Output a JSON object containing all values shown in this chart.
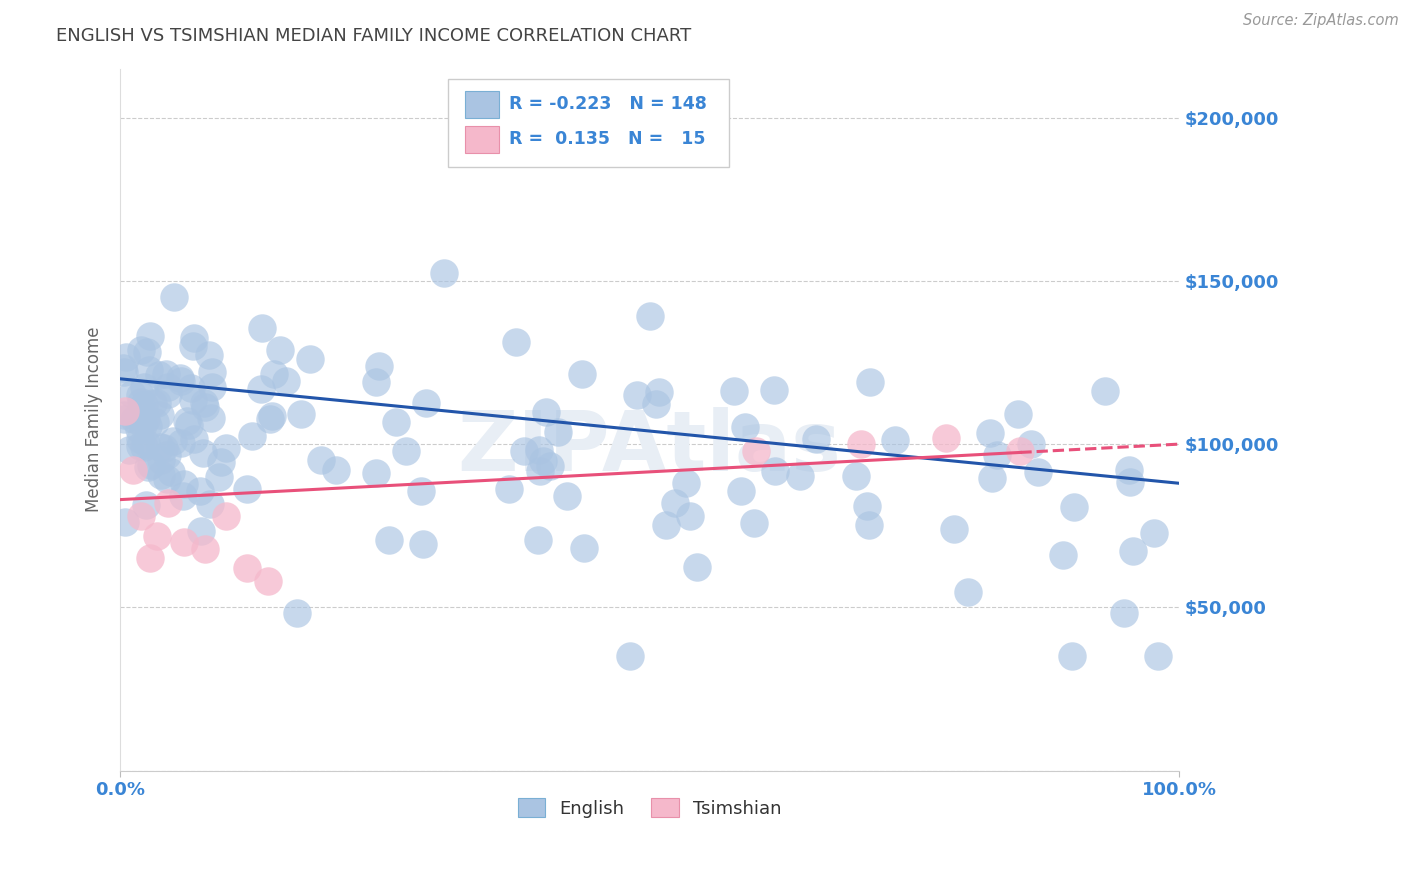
{
  "title": "ENGLISH VS TSIMSHIAN MEDIAN FAMILY INCOME CORRELATION CHART",
  "source": "Source: ZipAtlas.com",
  "ylabel": "Median Family Income",
  "xmin": 0.0,
  "xmax": 100.0,
  "ymin": 0,
  "ymax": 215000,
  "yticks": [
    0,
    50000,
    100000,
    150000,
    200000
  ],
  "english_R": -0.223,
  "english_N": 148,
  "tsimshian_R": 0.135,
  "tsimshian_N": 15,
  "english_color": "#aac4e2",
  "english_edge_color": "#7aafd4",
  "english_line_color": "#2255aa",
  "tsimshian_color": "#f5b8cb",
  "tsimshian_edge_color": "#e890aa",
  "tsimshian_line_color": "#e8507a",
  "background_color": "#ffffff",
  "grid_color": "#cccccc",
  "title_color": "#444444",
  "axis_label_color": "#666666",
  "tick_color": "#3a85d5",
  "legend_text_color": "#333333",
  "watermark_text": "ZIPAtlas",
  "watermark_color": "#e8eef5",
  "eng_line_x0": 0.0,
  "eng_line_x1": 100.0,
  "eng_line_y0": 120000,
  "eng_line_y1": 88000,
  "ts_line_x0": 0.0,
  "ts_line_x1": 100.0,
  "ts_line_y0": 83000,
  "ts_line_y1": 100000
}
